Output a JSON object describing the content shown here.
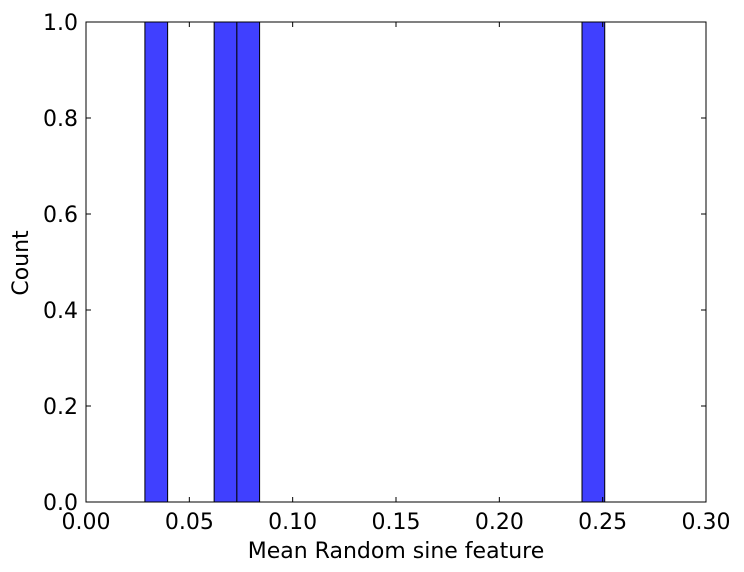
{
  "chart_data": {
    "type": "bar",
    "title": "",
    "xlabel": "Mean Random sine feature",
    "ylabel": "Count",
    "xlim": [
      0.0,
      0.3
    ],
    "ylim": [
      0.0,
      1.0
    ],
    "grid": false,
    "bar_color": "#4040ff",
    "bars": [
      {
        "x0": 0.0285,
        "x1": 0.0395,
        "value": 1
      },
      {
        "x0": 0.062,
        "x1": 0.073,
        "value": 1
      },
      {
        "x0": 0.073,
        "x1": 0.084,
        "value": 1
      },
      {
        "x0": 0.24,
        "x1": 0.251,
        "value": 1
      }
    ],
    "xticks": [
      0.0,
      0.05,
      0.1,
      0.15,
      0.2,
      0.25,
      0.3
    ],
    "xtick_labels": [
      "0.00",
      "0.05",
      "0.10",
      "0.15",
      "0.20",
      "0.25",
      "0.30"
    ],
    "yticks": [
      0.0,
      0.2,
      0.4,
      0.6,
      0.8,
      1.0
    ],
    "ytick_labels": [
      "0.0",
      "0.2",
      "0.4",
      "0.6",
      "0.8",
      "1.0"
    ]
  }
}
